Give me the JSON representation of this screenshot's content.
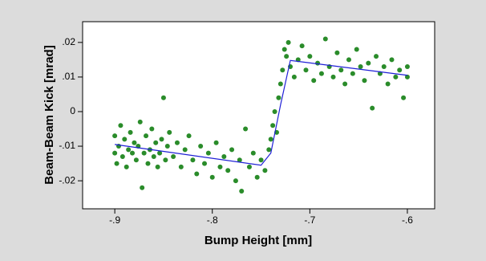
{
  "chart_data": {
    "type": "scatter",
    "xlabel": "Bump Height [mm]",
    "ylabel": "Beam-Beam Kick [mrad]",
    "xlim": [
      -0.933,
      -0.572
    ],
    "ylim": [
      -0.0281,
      0.026
    ],
    "xticks": [
      {
        "value": -0.9,
        "label": "-.9"
      },
      {
        "value": -0.8,
        "label": "-.8"
      },
      {
        "value": -0.7,
        "label": "-.7"
      },
      {
        "value": -0.6,
        "label": "-.6"
      }
    ],
    "yticks": [
      {
        "value": -0.02,
        "label": "-.02"
      },
      {
        "value": -0.01,
        "label": "-.01"
      },
      0,
      {
        "value": 0.01,
        "label": ".01"
      },
      {
        "value": 0.02,
        "label": ".02"
      }
    ],
    "points": {
      "color": "#2a8c2a",
      "x": [
        -0.9,
        -0.9,
        -0.898,
        -0.896,
        -0.894,
        -0.892,
        -0.89,
        -0.888,
        -0.886,
        -0.884,
        -0.882,
        -0.88,
        -0.878,
        -0.876,
        -0.874,
        -0.872,
        -0.87,
        -0.868,
        -0.866,
        -0.864,
        -0.862,
        -0.86,
        -0.858,
        -0.856,
        -0.854,
        -0.852,
        -0.85,
        -0.848,
        -0.846,
        -0.844,
        -0.84,
        -0.836,
        -0.832,
        -0.828,
        -0.824,
        -0.82,
        -0.816,
        -0.812,
        -0.808,
        -0.804,
        -0.8,
        -0.796,
        -0.792,
        -0.788,
        -0.784,
        -0.78,
        -0.776,
        -0.772,
        -0.77,
        -0.766,
        -0.762,
        -0.758,
        -0.754,
        -0.75,
        -0.746,
        -0.742,
        -0.74,
        -0.738,
        -0.736,
        -0.734,
        -0.732,
        -0.73,
        -0.728,
        -0.726,
        -0.724,
        -0.722,
        -0.72,
        -0.716,
        -0.712,
        -0.708,
        -0.704,
        -0.7,
        -0.696,
        -0.692,
        -0.688,
        -0.684,
        -0.68,
        -0.676,
        -0.672,
        -0.668,
        -0.664,
        -0.66,
        -0.656,
        -0.652,
        -0.648,
        -0.644,
        -0.64,
        -0.636,
        -0.632,
        -0.628,
        -0.624,
        -0.62,
        -0.616,
        -0.612,
        -0.608,
        -0.604,
        -0.6,
        -0.6
      ],
      "y": [
        -0.012,
        -0.007,
        -0.015,
        -0.01,
        -0.004,
        -0.013,
        -0.008,
        -0.016,
        -0.011,
        -0.006,
        -0.012,
        -0.009,
        -0.014,
        -0.01,
        -0.003,
        -0.022,
        -0.012,
        -0.007,
        -0.015,
        -0.011,
        -0.005,
        -0.013,
        -0.009,
        -0.016,
        -0.012,
        -0.008,
        0.004,
        -0.014,
        -0.01,
        -0.006,
        -0.013,
        -0.009,
        -0.016,
        -0.011,
        -0.007,
        -0.014,
        -0.018,
        -0.01,
        -0.015,
        -0.012,
        -0.019,
        -0.009,
        -0.016,
        -0.013,
        -0.017,
        -0.011,
        -0.02,
        -0.014,
        -0.023,
        -0.005,
        -0.016,
        -0.012,
        -0.019,
        -0.014,
        -0.017,
        -0.011,
        -0.008,
        -0.004,
        0.0,
        -0.006,
        0.004,
        0.008,
        0.012,
        0.018,
        0.016,
        0.02,
        0.013,
        0.01,
        0.015,
        0.019,
        0.012,
        0.016,
        0.009,
        0.014,
        0.011,
        0.021,
        0.013,
        0.01,
        0.017,
        0.012,
        0.008,
        0.015,
        0.011,
        0.018,
        0.013,
        0.009,
        0.014,
        0.001,
        0.016,
        0.011,
        0.013,
        0.008,
        0.015,
        0.01,
        0.012,
        0.004,
        0.01,
        0.013
      ]
    },
    "fit": {
      "color": "#1f1fd6",
      "x": [
        -0.9,
        -0.75,
        -0.74,
        -0.73,
        -0.72,
        -0.6
      ],
      "y": [
        -0.0095,
        -0.0155,
        -0.012,
        0.002,
        0.0148,
        0.0105
      ]
    }
  }
}
